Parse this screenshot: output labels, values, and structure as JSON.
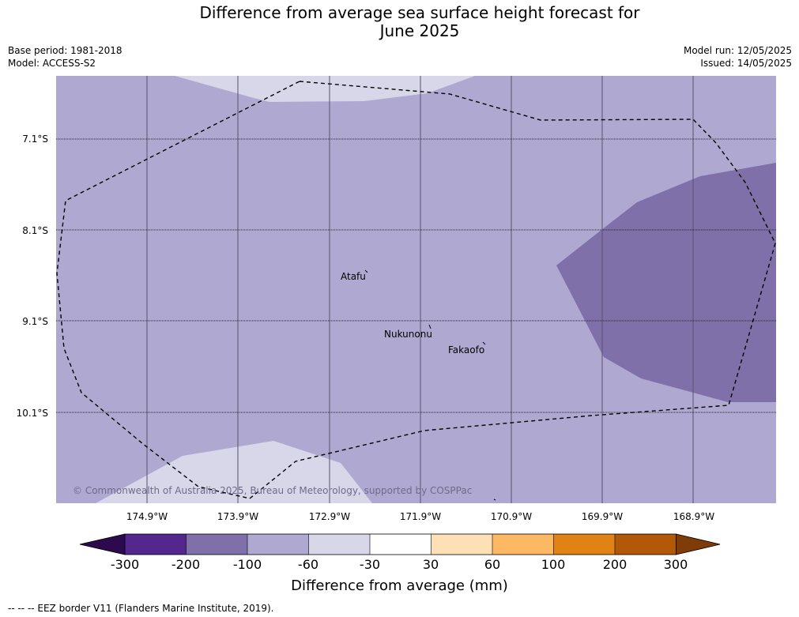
{
  "title_line1": "Difference from average sea surface height forecast for",
  "title_line2": "June 2025",
  "meta_left": {
    "base_period": "Base period: 1981-2018",
    "model": "Model: ACCESS-S2"
  },
  "meta_right": {
    "model_run": "Model run: 12/05/2025",
    "issued": "Issued: 14/05/2025"
  },
  "map": {
    "copyright": "© Commonwealth of Australia 2025, Bureau of Meteorology, supported by COSPPac",
    "places": [
      "Atafu",
      "Nukunonu",
      "Fakaofo"
    ],
    "lat_labels": [
      "7.1°S",
      "8.1°S",
      "9.1°S",
      "10.1°S"
    ],
    "lon_labels": [
      "174.9°W",
      "173.9°W",
      "172.9°W",
      "171.9°W",
      "170.9°W",
      "169.9°W",
      "168.9°W"
    ]
  },
  "colorbar": {
    "title": "Difference from average (mm)",
    "ticks": [
      "-300",
      "-200",
      "-100",
      "-60",
      "-30",
      "30",
      "60",
      "100",
      "200",
      "300"
    ],
    "colors": [
      "#2d0a4e",
      "#54278f",
      "#7f70aa",
      "#afa8d1",
      "#d8d7e9",
      "#ffffff",
      "#fee0b6",
      "#fdb863",
      "#e08214",
      "#b35806",
      "#7f3b08"
    ]
  },
  "footnote": "--  --  -- EEZ border V11 (Flanders Marine Institute, 2019)."
}
